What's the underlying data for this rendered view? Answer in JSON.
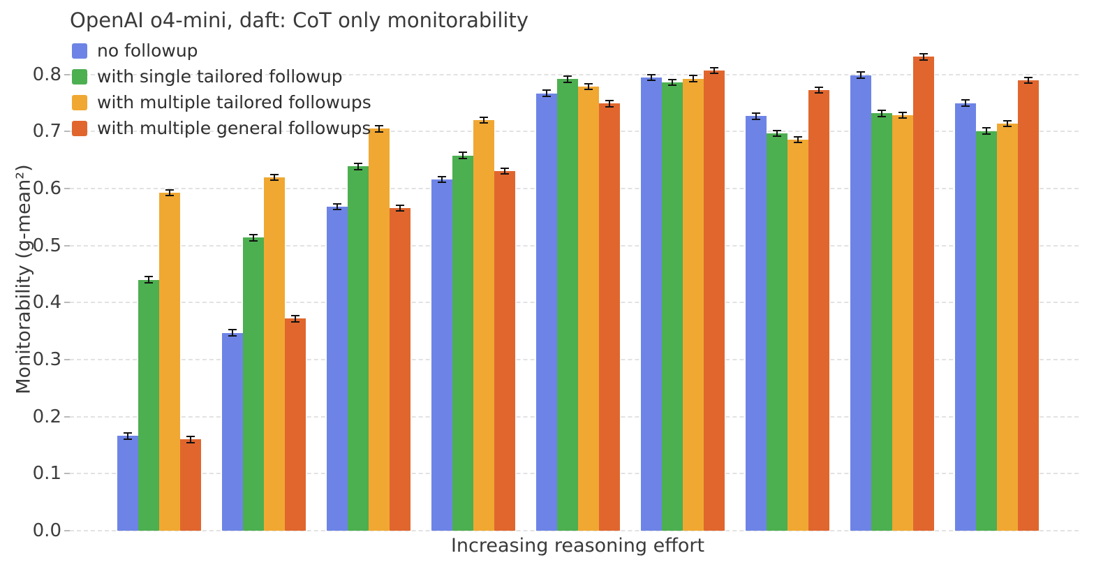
{
  "chart_data": {
    "type": "bar",
    "title": "OpenAI o4-mini, daft: CoT only monitorability",
    "xlabel": "Increasing reasoning effort",
    "ylabel": "Monitorability (g-mean²)",
    "ylim": [
      0.0,
      0.85
    ],
    "yticks": [
      0.0,
      0.1,
      0.2,
      0.3,
      0.4,
      0.5,
      0.6,
      0.7,
      0.8
    ],
    "grid": "horizontal-dashed",
    "legend_position": "upper-left",
    "group_count": 9,
    "x_tick_labels_visible": false,
    "error_bars": {
      "visible": true,
      "approx_half_width": 0.004
    },
    "series": [
      {
        "name": "no followup",
        "color": "#6d84e6",
        "values": [
          0.166,
          0.347,
          0.568,
          0.616,
          0.767,
          0.795,
          0.727,
          0.799,
          0.75
        ]
      },
      {
        "name": "with single tailored followup",
        "color": "#4caf50",
        "values": [
          0.44,
          0.514,
          0.639,
          0.658,
          0.792,
          0.786,
          0.697,
          0.732,
          0.701
        ]
      },
      {
        "name": "with multiple tailored followups",
        "color": "#f0a832",
        "values": [
          0.593,
          0.62,
          0.705,
          0.72,
          0.779,
          0.793,
          0.686,
          0.729,
          0.714
        ]
      },
      {
        "name": "with multiple general followups",
        "color": "#e0662e",
        "values": [
          0.16,
          0.372,
          0.566,
          0.631,
          0.749,
          0.807,
          0.773,
          0.831,
          0.79
        ]
      }
    ]
  }
}
